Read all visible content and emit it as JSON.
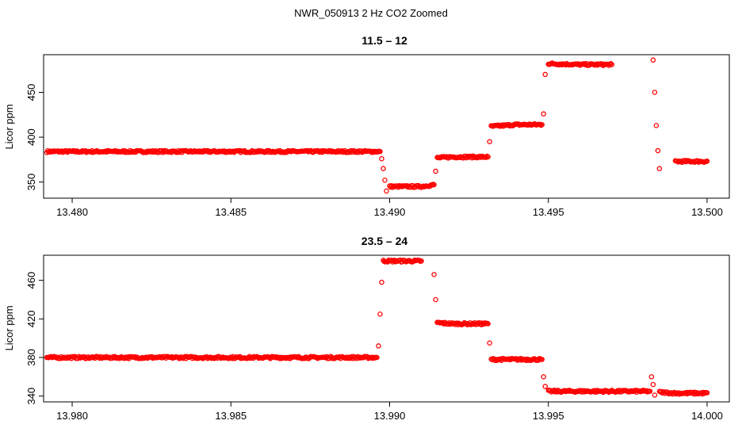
{
  "figure": {
    "title": "NWR_050913  2 Hz CO2 Zoomed"
  },
  "chart_data": [
    {
      "type": "scatter",
      "title": "11.5 – 12",
      "xlabel": "",
      "ylabel": "Licor ppm",
      "xlim": [
        13.4791,
        13.5007
      ],
      "ylim": [
        332,
        492
      ],
      "xticks": [
        "13.480",
        "13.485",
        "13.490",
        "13.495",
        "13.500"
      ],
      "xtick_values": [
        13.48,
        13.485,
        13.49,
        13.495,
        13.5
      ],
      "yticks": [
        "350",
        "400",
        "450"
      ],
      "ytick_values": [
        350,
        400,
        450
      ],
      "marker": "open-circle",
      "color": "#ff0000",
      "series": [
        {
          "x": [
            13.4792,
            13.48,
            13.482,
            13.484,
            13.486,
            13.488,
            13.4897,
            13.48975,
            13.4898,
            13.48985,
            13.4899,
            13.49,
            13.491,
            13.4914,
            13.49145,
            13.4915,
            13.492,
            13.4931,
            13.49315,
            13.4932,
            13.494,
            13.4948,
            13.49485,
            13.4949,
            13.495,
            13.496,
            13.497,
            13.4983,
            13.49835,
            13.4984,
            13.49845,
            13.4985,
            13.499,
            13.5
          ],
          "y": [
            384,
            384,
            384,
            384,
            384,
            384,
            384,
            376,
            365,
            352,
            340,
            345,
            345,
            347,
            362,
            377,
            378,
            378,
            395,
            412,
            414,
            414,
            426,
            470,
            482,
            481,
            481,
            486,
            450,
            413,
            385,
            365,
            373,
            373
          ]
        }
      ]
    },
    {
      "type": "scatter",
      "title": "23.5 – 24",
      "xlabel": "",
      "ylabel": "Licor ppm",
      "xlim": [
        13.9791,
        14.0007
      ],
      "ylim": [
        334,
        486
      ],
      "xticks": [
        "13.980",
        "13.985",
        "13.990",
        "13.995",
        "14.000"
      ],
      "xtick_values": [
        13.98,
        13.985,
        13.99,
        13.995,
        14.0
      ],
      "yticks": [
        "340",
        "380",
        "420",
        "460"
      ],
      "ytick_values": [
        340,
        380,
        420,
        460
      ],
      "marker": "open-circle",
      "color": "#ff0000",
      "series": [
        {
          "x": [
            13.9792,
            13.98,
            13.982,
            13.984,
            13.986,
            13.988,
            13.9896,
            13.98965,
            13.9897,
            13.98975,
            13.9898,
            13.99,
            13.991,
            13.9914,
            13.99145,
            13.9915,
            13.992,
            13.9931,
            13.99315,
            13.9932,
            13.994,
            13.9948,
            13.99485,
            13.9949,
            13.995,
            13.996,
            13.997,
            13.9982,
            13.99825,
            13.9983,
            13.99835,
            13.9985,
            13.999,
            14.0
          ],
          "y": [
            380,
            380,
            380,
            380,
            380,
            380,
            380,
            392,
            425,
            458,
            480,
            480,
            480,
            466,
            440,
            416,
            415,
            415,
            395,
            378,
            378,
            378,
            360,
            350,
            345,
            345,
            345,
            345,
            360,
            352,
            341,
            344,
            343,
            343
          ]
        }
      ]
    }
  ]
}
